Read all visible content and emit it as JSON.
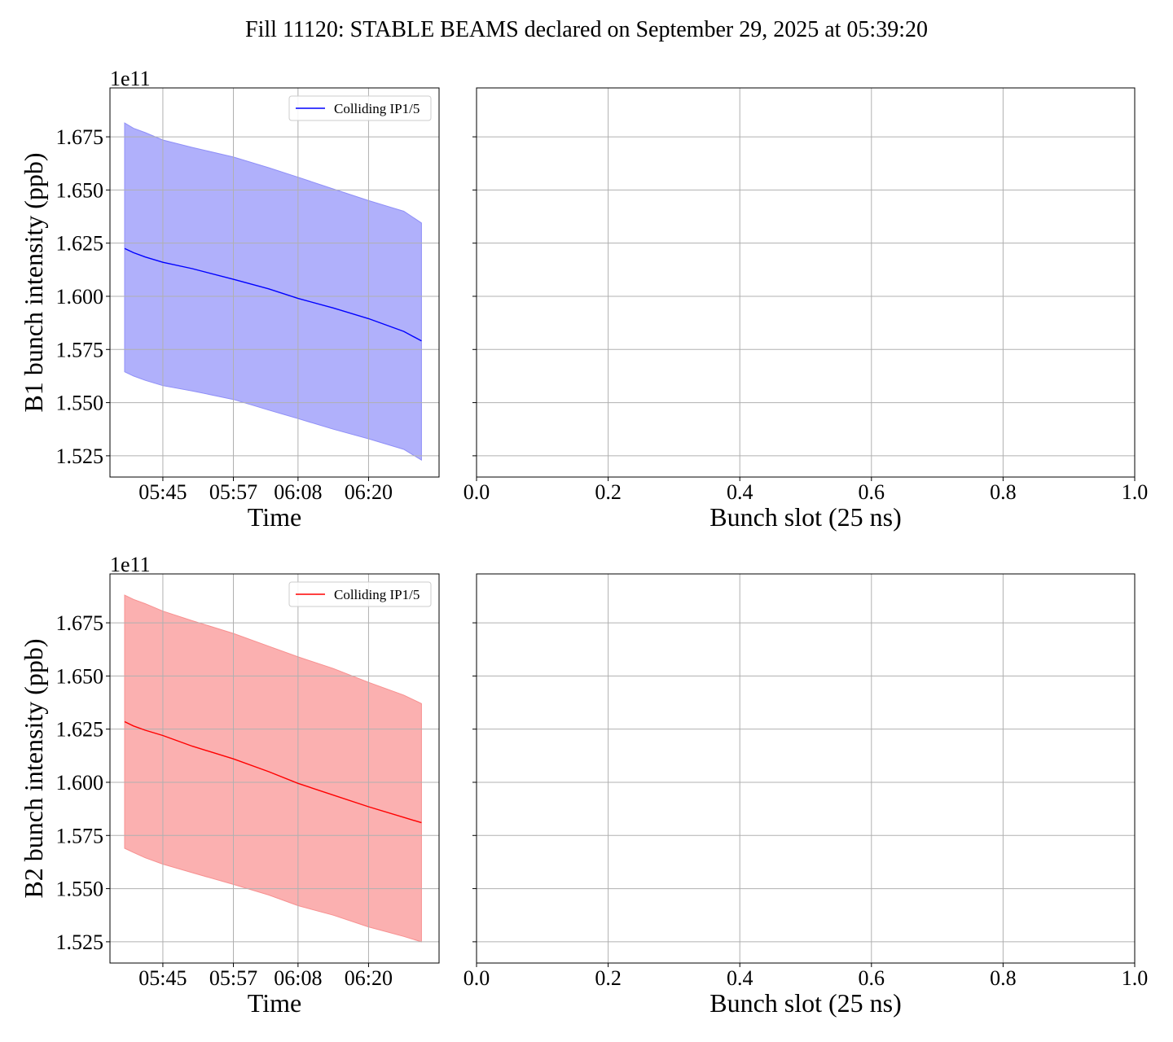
{
  "title": "Fill 11120: STABLE BEAMS declared on September 29, 2025 at 05:39:20",
  "colors": {
    "b1_line": "#0000ff",
    "b1_band": "#b0b0fb",
    "b1_band_edge": "#8f8ff7",
    "b2_line": "#ff0000",
    "b2_band": "#fbb0b0",
    "b2_band_edge": "#f79090",
    "grid": "#b0b0b0"
  },
  "chart_data": [
    {
      "type": "area",
      "id": "b1-time",
      "ylabel": "B1 bunch intensity (ppb)",
      "xlabel": "Time",
      "y_offset_label": "1e11",
      "ylim": [
        1.515,
        1.698
      ],
      "xlim": [
        "05:36",
        "06:32"
      ],
      "xticks": [
        "05:45",
        "05:57",
        "06:08",
        "06:20"
      ],
      "yticks": [
        "1.525",
        "1.550",
        "1.575",
        "1.600",
        "1.625",
        "1.650",
        "1.675"
      ],
      "grid": true,
      "legend": {
        "placement": "upper right",
        "label": "Colliding IP1/5"
      },
      "series": [
        {
          "name": "Colliding IP1/5",
          "x": [
            "05:38:30",
            "05:40:00",
            "05:42:00",
            "05:45:00",
            "05:50:00",
            "05:57:00",
            "06:03:00",
            "06:08:00",
            "06:14:00",
            "06:20:00",
            "06:26:00",
            "06:29:00"
          ],
          "mean": [
            1.6225,
            1.6205,
            1.6185,
            1.616,
            1.613,
            1.608,
            1.6035,
            1.599,
            1.5945,
            1.5895,
            1.5835,
            1.579
          ],
          "upper": [
            1.6815,
            1.679,
            1.677,
            1.6735,
            1.67,
            1.6655,
            1.6605,
            1.656,
            1.6505,
            1.645,
            1.64,
            1.6345
          ],
          "lower": [
            1.5645,
            1.5625,
            1.5605,
            1.558,
            1.5555,
            1.5515,
            1.5465,
            1.5425,
            1.5375,
            1.533,
            1.528,
            1.523
          ]
        }
      ]
    },
    {
      "type": "line",
      "id": "b1-slot",
      "xlabel": "Bunch slot (25 ns)",
      "xlim": [
        0.0,
        1.0
      ],
      "xticks": [
        "0.0",
        "0.2",
        "0.4",
        "0.6",
        "0.8",
        "1.0"
      ],
      "ylim": [
        1.515,
        1.698
      ],
      "grid": true,
      "series": []
    },
    {
      "type": "area",
      "id": "b2-time",
      "ylabel": "B2 bunch intensity (ppb)",
      "xlabel": "Time",
      "y_offset_label": "1e11",
      "ylim": [
        1.515,
        1.698
      ],
      "xlim": [
        "05:36",
        "06:32"
      ],
      "xticks": [
        "05:45",
        "05:57",
        "06:08",
        "06:20"
      ],
      "yticks": [
        "1.525",
        "1.550",
        "1.575",
        "1.600",
        "1.625",
        "1.650",
        "1.675"
      ],
      "grid": true,
      "legend": {
        "placement": "upper right",
        "label": "Colliding IP1/5"
      },
      "series": [
        {
          "name": "Colliding IP1/5",
          "x": [
            "05:38:30",
            "05:40:00",
            "05:42:00",
            "05:45:00",
            "05:50:00",
            "05:57:00",
            "06:03:00",
            "06:08:00",
            "06:14:00",
            "06:20:00",
            "06:26:00",
            "06:29:00"
          ],
          "mean": [
            1.6285,
            1.6265,
            1.6245,
            1.622,
            1.617,
            1.611,
            1.605,
            1.5995,
            1.594,
            1.5885,
            1.5835,
            1.581
          ],
          "upper": [
            1.688,
            1.686,
            1.684,
            1.6805,
            1.676,
            1.67,
            1.664,
            1.659,
            1.6535,
            1.647,
            1.641,
            1.637
          ],
          "lower": [
            1.569,
            1.567,
            1.5645,
            1.5615,
            1.5575,
            1.552,
            1.547,
            1.542,
            1.5375,
            1.532,
            1.5275,
            1.525
          ]
        }
      ]
    },
    {
      "type": "line",
      "id": "b2-slot",
      "xlabel": "Bunch slot (25 ns)",
      "xlim": [
        0.0,
        1.0
      ],
      "xticks": [
        "0.0",
        "0.2",
        "0.4",
        "0.6",
        "0.8",
        "1.0"
      ],
      "ylim": [
        1.515,
        1.698
      ],
      "grid": true,
      "series": []
    }
  ]
}
